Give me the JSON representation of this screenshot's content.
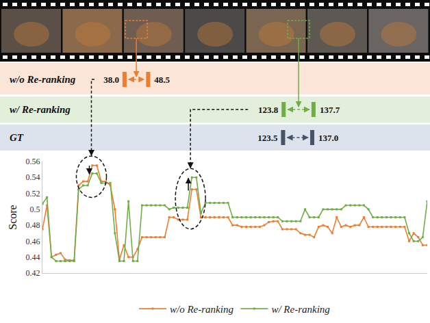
{
  "chart_data": {
    "type": "line",
    "x": [
      0,
      4,
      8,
      12,
      16,
      20,
      24,
      28,
      32,
      36,
      40,
      44,
      48,
      52,
      56,
      60,
      64,
      68,
      72,
      76,
      80,
      84,
      88,
      92,
      96,
      100,
      104,
      108,
      112,
      116,
      120,
      124,
      128,
      132,
      136,
      140,
      144,
      148,
      152,
      156,
      160,
      164,
      168,
      172,
      176,
      180,
      184,
      188,
      192,
      196,
      200,
      204,
      208,
      212,
      216,
      220,
      224,
      228,
      232,
      236,
      240,
      244,
      248,
      252,
      256,
      260,
      264,
      268,
      272,
      276,
      280,
      284,
      288,
      292,
      296,
      300,
      304,
      308,
      312,
      316,
      320,
      324,
      328,
      332,
      336,
      340
    ],
    "series": [
      {
        "name": "w/o Re-ranking",
        "color": "#ed7d31",
        "marker": "square",
        "values": [
          0.475,
          0.505,
          0.44,
          0.443,
          0.445,
          0.437,
          0.436,
          0.436,
          0.53,
          0.535,
          0.535,
          0.555,
          0.555,
          0.535,
          0.535,
          0.53,
          0.5,
          0.437,
          0.455,
          0.44,
          0.44,
          0.45,
          0.465,
          0.465,
          0.465,
          0.465,
          0.465,
          0.465,
          0.49,
          0.49,
          0.487,
          0.487,
          0.487,
          0.525,
          0.525,
          0.49,
          0.49,
          0.49,
          0.49,
          0.49,
          0.49,
          0.49,
          0.48,
          0.48,
          0.478,
          0.478,
          0.478,
          0.478,
          0.478,
          0.48,
          0.484,
          0.485,
          0.485,
          0.475,
          0.475,
          0.475,
          0.475,
          0.47,
          0.468,
          0.468,
          0.465,
          0.478,
          0.48,
          0.478,
          0.47,
          0.49,
          0.478,
          0.48,
          0.478,
          0.48,
          0.48,
          0.49,
          0.478,
          0.478,
          0.478,
          0.478,
          0.478,
          0.478,
          0.478,
          0.478,
          0.478,
          0.46,
          0.47,
          0.465,
          0.455,
          0.455
        ]
      },
      {
        "name": "w/ Re-ranking",
        "color": "#70ad47",
        "marker": "square",
        "values": [
          0.507,
          0.515,
          0.44,
          0.435,
          0.435,
          0.435,
          0.435,
          0.435,
          0.525,
          0.53,
          0.53,
          0.545,
          0.545,
          0.533,
          0.533,
          0.533,
          0.47,
          0.435,
          0.435,
          0.51,
          0.435,
          0.435,
          0.505,
          0.505,
          0.505,
          0.505,
          0.505,
          0.505,
          0.5,
          0.502,
          0.502,
          0.502,
          0.502,
          0.54,
          0.54,
          0.495,
          0.508,
          0.508,
          0.508,
          0.508,
          0.508,
          0.508,
          0.49,
          0.49,
          0.49,
          0.49,
          0.49,
          0.49,
          0.49,
          0.49,
          0.49,
          0.49,
          0.49,
          0.485,
          0.485,
          0.485,
          0.485,
          0.485,
          0.5,
          0.49,
          0.49,
          0.49,
          0.5,
          0.5,
          0.5,
          0.5,
          0.5,
          0.505,
          0.505,
          0.505,
          0.505,
          0.505,
          0.5,
          0.49,
          0.49,
          0.49,
          0.49,
          0.49,
          0.49,
          0.49,
          0.49,
          0.47,
          0.46,
          0.46,
          0.465,
          0.51
        ]
      }
    ],
    "ylabel": "Score",
    "xlim": [
      0,
      340
    ],
    "ylim": [
      0.42,
      0.56
    ],
    "yticks": [
      0.42,
      0.44,
      0.46,
      0.48,
      0.5,
      0.52,
      0.54,
      0.56
    ],
    "grid": false,
    "legend": "bottom",
    "tick_labels": "y"
  },
  "timeline": {
    "rows": [
      {
        "label": "w/o Re-ranking",
        "color": "#ed7d31",
        "start": {
          "value": 38.0,
          "label": "38.0"
        },
        "end": {
          "value": 48.5,
          "label": "48.5"
        }
      },
      {
        "label": "w/ Re-ranking",
        "color": "#70ad47",
        "start": {
          "value": 123.8,
          "label": "123.8"
        },
        "end": {
          "value": 137.7,
          "label": "137.7"
        }
      },
      {
        "label": "GT",
        "color": "#44546a",
        "start": {
          "value": 123.5,
          "label": "123.5"
        },
        "end": {
          "value": 137.0,
          "label": "137.0"
        }
      }
    ]
  }
}
